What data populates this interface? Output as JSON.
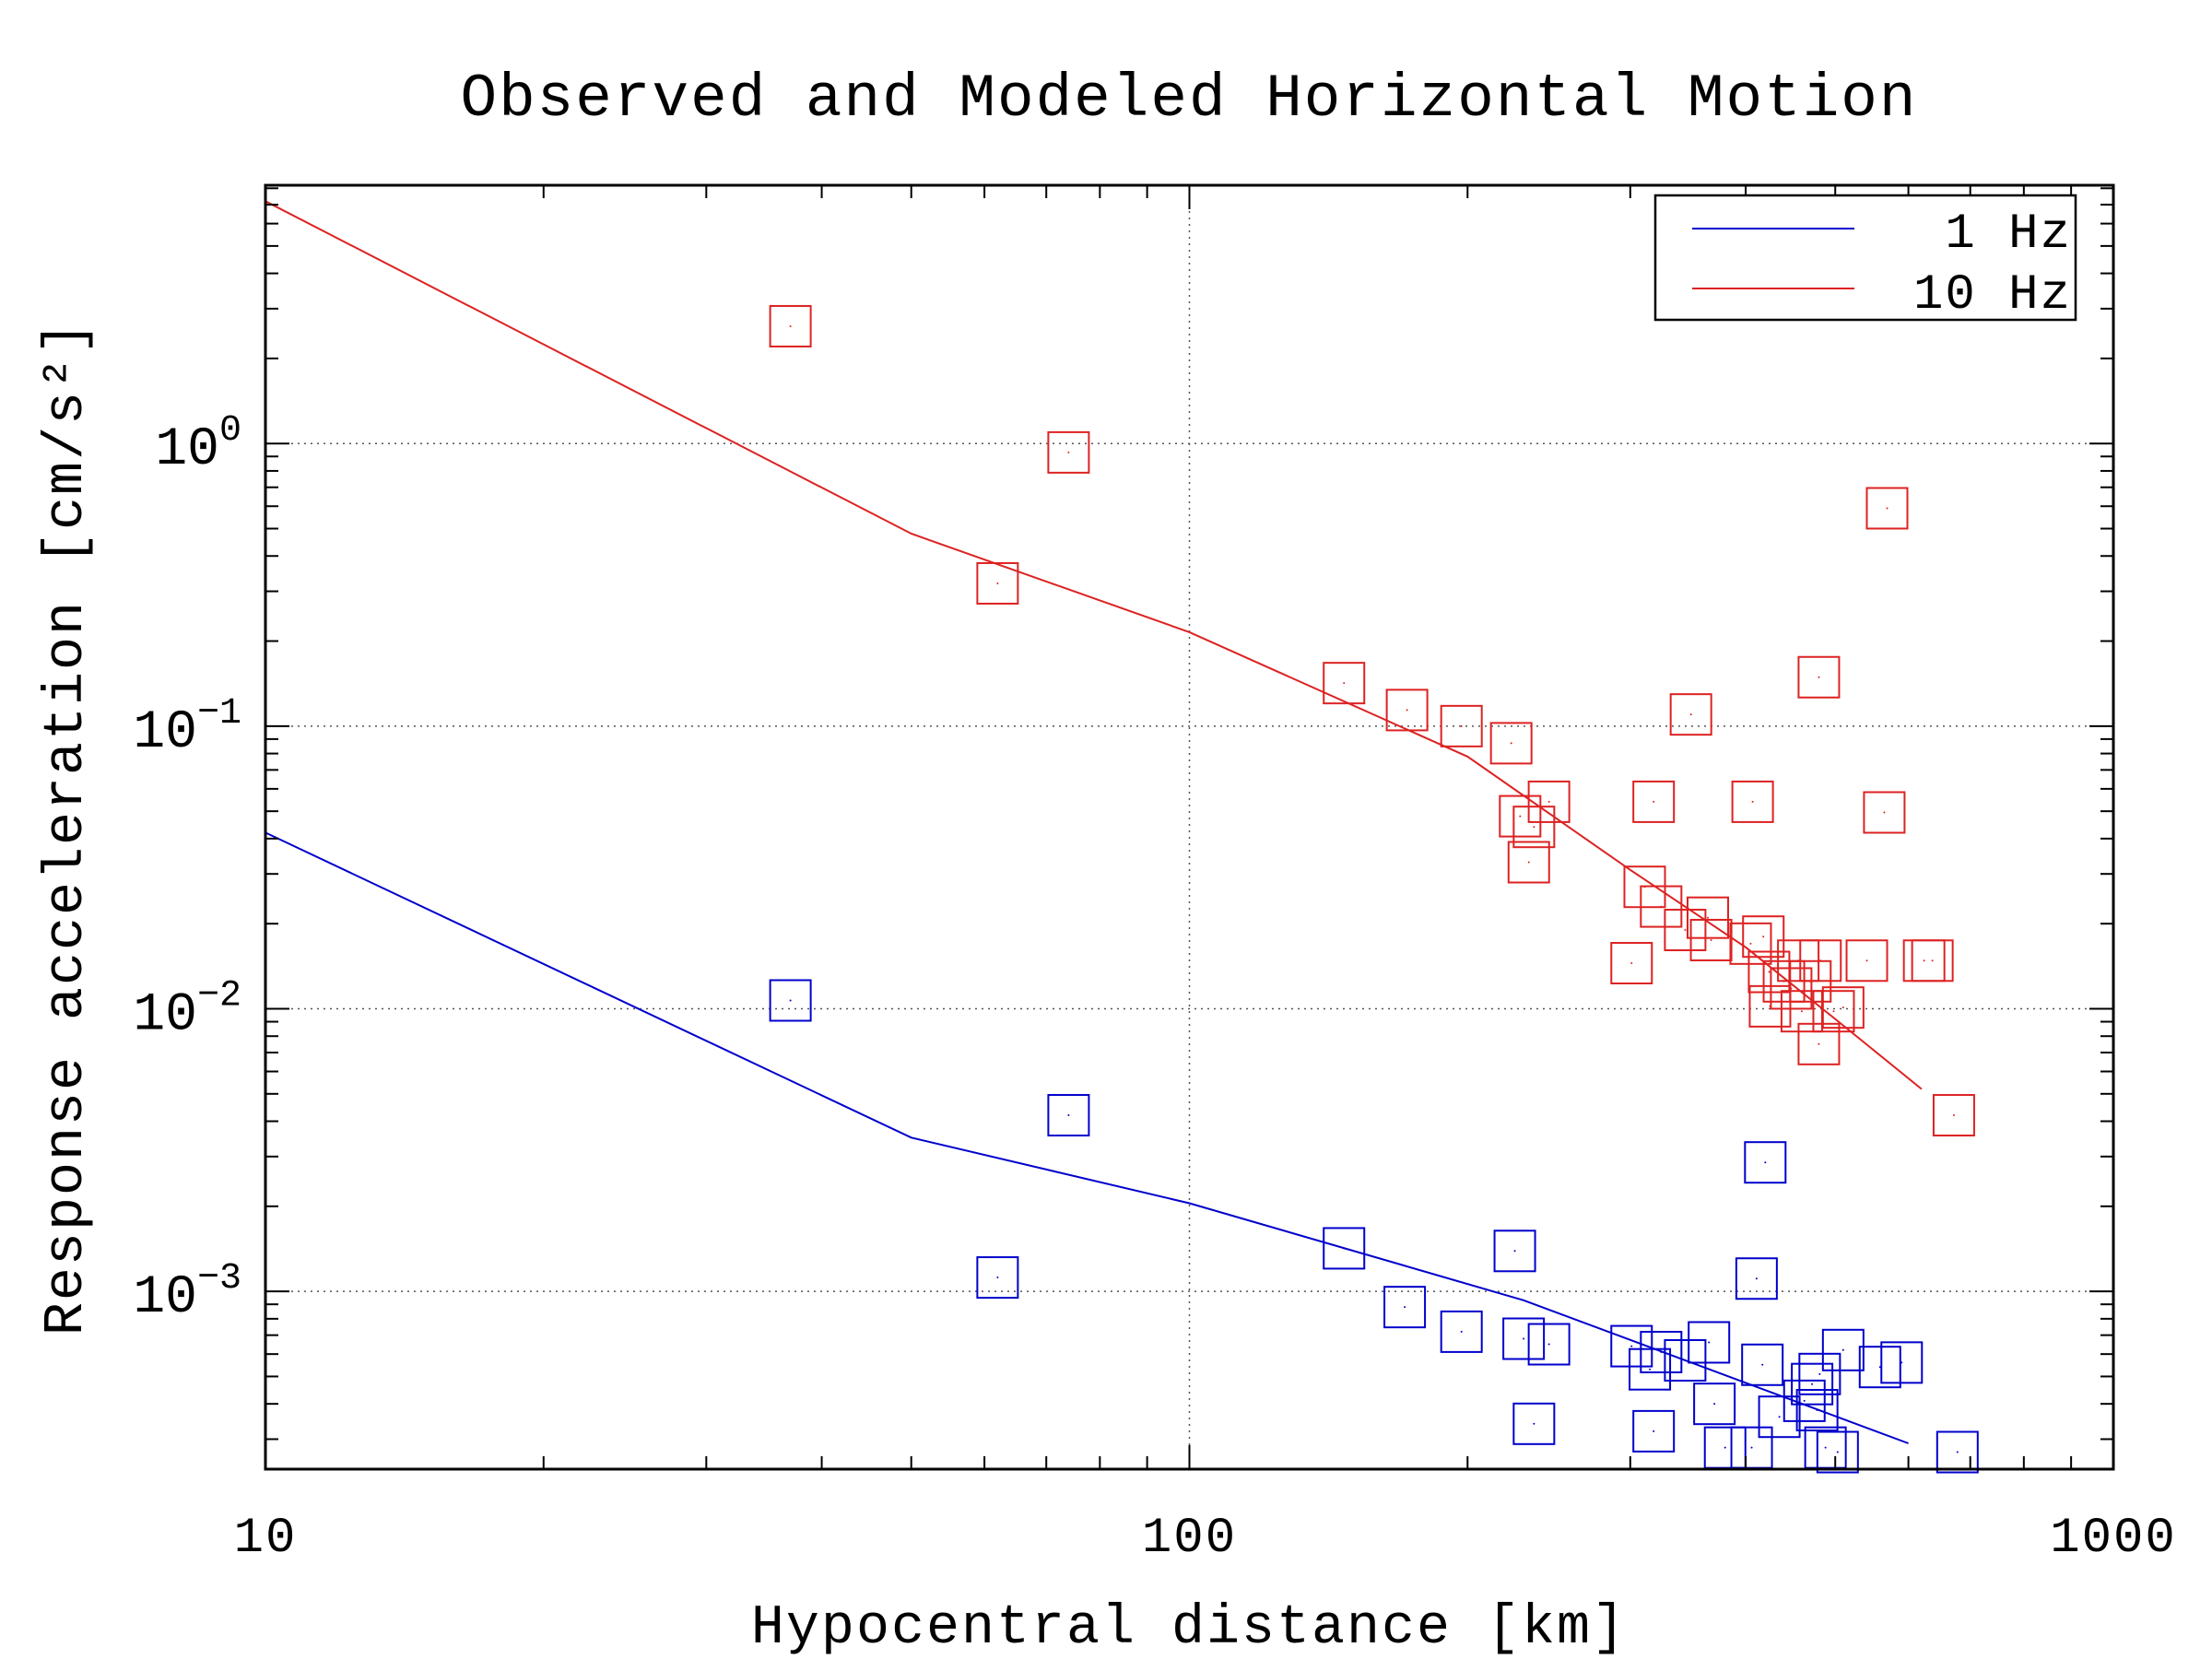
{
  "chart_data": {
    "type": "scatter",
    "title": "Observed and Modeled Horizontal Motion",
    "xlabel": "Hypocentral distance [km]",
    "ylabel": "Response acceleration [cm/s²]",
    "xscale": "log",
    "yscale": "log",
    "xlim": [
      10,
      1000
    ],
    "ylim": [
      0.000235,
      8.2
    ],
    "grid": true,
    "legend_position": "top-right",
    "x_ticks": [
      {
        "value": 10,
        "label": "10"
      },
      {
        "value": 100,
        "label": "100"
      },
      {
        "value": 1000,
        "label": "1000"
      }
    ],
    "y_ticks": [
      {
        "value": 1,
        "base": "10",
        "exp": "0"
      },
      {
        "value": 0.1,
        "base": "10",
        "exp": "−1"
      },
      {
        "value": 0.01,
        "base": "10",
        "exp": "−2"
      },
      {
        "value": 0.001,
        "base": "10",
        "exp": "−3"
      }
    ],
    "series": [
      {
        "name": "1 Hz",
        "color": "#0000cc",
        "model": {
          "x": [
            10,
            50,
            100,
            230,
            600
          ],
          "y": [
            0.042,
            0.0035,
            0.00205,
            0.00093,
            0.00029
          ]
        },
        "observed": {
          "x": [
            37,
            74,
            62,
            147,
            171,
            197,
            225,
            230,
            236,
            245,
            301,
            315,
            318,
            324,
            344,
            365,
            370,
            380,
            406,
            411,
            420,
            417,
            435,
            463,
            472,
            478,
            481,
            488,
            510,
            503,
            590,
            559,
            678
          ],
          "y": [
            0.0107,
            0.0042,
            0.00112,
            0.00142,
            0.00088,
            0.00072,
            0.00139,
            0.00068,
            0.00034,
            0.00065,
            0.00064,
            0.00053,
            0.00032,
            0.00061,
            0.00057,
            0.00066,
            0.0004,
            0.00028,
            0.00028,
            0.00111,
            0.00286,
            0.00055,
            0.00036,
            0.00041,
            0.00047,
            0.00038,
            0.00051,
            0.00028,
            0.00062,
            0.00027,
            0.00056,
            0.00054,
            0.00027
          ]
        }
      },
      {
        "name": "10 Hz",
        "color": "#dd2222",
        "model": {
          "x": [
            10,
            50,
            100,
            200,
            300,
            400,
            500,
            620
          ],
          "y": [
            7.2,
            0.48,
            0.215,
            0.078,
            0.031,
            0.0165,
            0.0092,
            0.0052
          ]
        },
        "observed": {
          "x": [
            37,
            74,
            62,
            147,
            172,
            197,
            223,
            228,
            233,
            236,
            245,
            301,
            318,
            311,
            324,
            344,
            349,
            364,
            367,
            407,
            405,
            418,
            424,
            440,
            425,
            448,
            470,
            456,
            480,
            460,
            482,
            480,
            510,
            498,
            541,
            565,
            569,
            637,
            624,
            672
          ],
          "y": [
            2.6,
            0.93,
            0.32,
            0.142,
            0.114,
            0.1,
            0.087,
            0.048,
            0.033,
            0.044,
            0.054,
            0.0145,
            0.054,
            0.027,
            0.023,
            0.019,
            0.11,
            0.021,
            0.0175,
            0.054,
            0.017,
            0.018,
            0.0135,
            0.0125,
            0.0102,
            0.0118,
            0.0125,
            0.0148,
            0.0075,
            0.0098,
            0.0148,
            0.149,
            0.0101,
            0.0098,
            0.0148,
            0.0495,
            0.59,
            0.0148,
            0.0148,
            0.0042
          ]
        }
      }
    ]
  }
}
